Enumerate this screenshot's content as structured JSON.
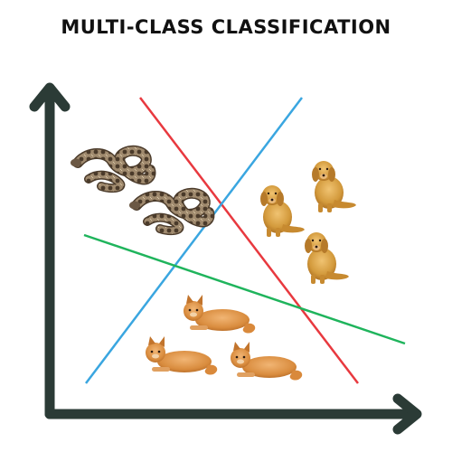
{
  "title": "MULTI-CLASS CLASSIFICATION",
  "colors": {
    "axis": "#2b3b36",
    "boundary_red": "#e8393f",
    "boundary_blue": "#3aa6e0",
    "boundary_green": "#1fb45c",
    "snake_body": "#8a7259",
    "dog_fur": "#d39a3c",
    "cat_fur": "#d98c3e"
  },
  "classes": [
    {
      "name": "snake",
      "icon": "snake-icon",
      "count": 2
    },
    {
      "name": "dog",
      "icon": "dog-icon",
      "count": 3
    },
    {
      "name": "cat",
      "icon": "cat-icon",
      "count": 3
    }
  ],
  "decision_boundaries": [
    "red",
    "blue",
    "green"
  ]
}
